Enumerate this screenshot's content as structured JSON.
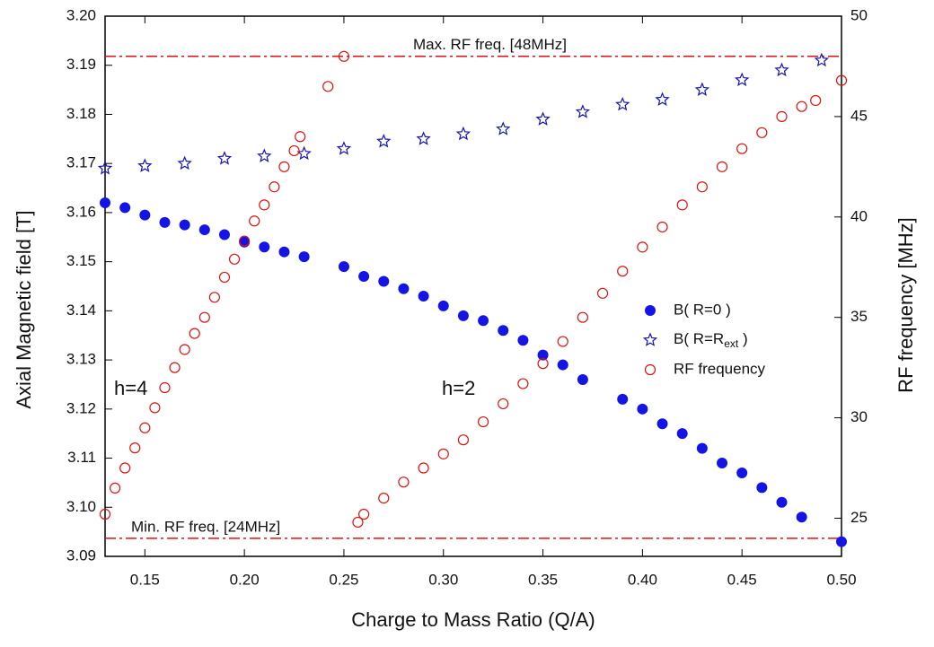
{
  "chart_data": {
    "type": "scatter",
    "x_label": "Charge to Mass Ratio (Q/A)",
    "y_label": "Axial Magnetic field [T]",
    "y2_label": "RF frequency [MHz]",
    "xlim": [
      0.13,
      0.5
    ],
    "ylim": [
      3.09,
      3.2
    ],
    "y2lim": [
      23.1,
      50
    ],
    "xticks": [
      {
        "value": 0.15,
        "label": "0.15"
      },
      {
        "value": 0.2,
        "label": "0.20"
      },
      {
        "value": 0.25,
        "label": "0.25"
      },
      {
        "value": 0.3,
        "label": "0.30"
      },
      {
        "value": 0.35,
        "label": "0.35"
      },
      {
        "value": 0.4,
        "label": "0.40"
      },
      {
        "value": 0.45,
        "label": "0.45"
      },
      {
        "value": 0.5,
        "label": "0.50"
      }
    ],
    "yticks": [
      {
        "value": 3.09,
        "label": "3.09"
      },
      {
        "value": 3.1,
        "label": "3.10"
      },
      {
        "value": 3.11,
        "label": "3.11"
      },
      {
        "value": 3.12,
        "label": "3.12"
      },
      {
        "value": 3.13,
        "label": "3.13"
      },
      {
        "value": 3.14,
        "label": "3.14"
      },
      {
        "value": 3.15,
        "label": "3.15"
      },
      {
        "value": 3.16,
        "label": "3.16"
      },
      {
        "value": 3.17,
        "label": "3.17"
      },
      {
        "value": 3.18,
        "label": "3.18"
      },
      {
        "value": 3.19,
        "label": "3.19"
      },
      {
        "value": 3.2,
        "label": "3.20"
      }
    ],
    "y2ticks": [
      25,
      30,
      35,
      40,
      45,
      50
    ],
    "series": [
      {
        "name": "B( R=0 )",
        "color": "#1414e6",
        "marker": "filled-circle",
        "x": [
          0.13,
          0.14,
          0.15,
          0.16,
          0.17,
          0.18,
          0.19,
          0.2,
          0.21,
          0.22,
          0.23,
          0.25,
          0.26,
          0.27,
          0.28,
          0.29,
          0.3,
          0.31,
          0.32,
          0.33,
          0.34,
          0.35,
          0.36,
          0.37,
          0.39,
          0.4,
          0.41,
          0.42,
          0.43,
          0.44,
          0.45,
          0.46,
          0.47,
          0.48,
          0.5
        ],
        "values": [
          3.162,
          3.161,
          3.1595,
          3.158,
          3.1575,
          3.1565,
          3.1555,
          3.154,
          3.153,
          3.152,
          3.151,
          3.149,
          3.147,
          3.146,
          3.1445,
          3.143,
          3.141,
          3.139,
          3.138,
          3.136,
          3.134,
          3.131,
          3.129,
          3.126,
          3.122,
          3.12,
          3.117,
          3.115,
          3.112,
          3.109,
          3.107,
          3.104,
          3.101,
          3.098,
          3.093
        ]
      },
      {
        "name": "B( R=Rext )",
        "color": "#1414b4",
        "marker": "open-star",
        "x": [
          0.13,
          0.15,
          0.17,
          0.19,
          0.21,
          0.23,
          0.25,
          0.27,
          0.29,
          0.31,
          0.33,
          0.35,
          0.37,
          0.39,
          0.41,
          0.43,
          0.45,
          0.47,
          0.49
        ],
        "values": [
          3.169,
          3.1695,
          3.17,
          3.171,
          3.1715,
          3.172,
          3.173,
          3.1745,
          3.175,
          3.176,
          3.177,
          3.179,
          3.1805,
          3.182,
          3.183,
          3.185,
          3.187,
          3.189,
          3.191
        ]
      },
      {
        "name": "RF frequency",
        "color": "#e01010",
        "marker": "open-circle",
        "axis": "y2",
        "x": [
          0.13,
          0.135,
          0.14,
          0.145,
          0.15,
          0.155,
          0.16,
          0.165,
          0.17,
          0.175,
          0.18,
          0.185,
          0.19,
          0.195,
          0.2,
          0.205,
          0.21,
          0.215,
          0.22,
          0.225,
          0.228,
          0.242,
          0.25,
          0.257,
          0.26,
          0.27,
          0.28,
          0.29,
          0.3,
          0.31,
          0.32,
          0.33,
          0.34,
          0.35,
          0.36,
          0.37,
          0.38,
          0.39,
          0.4,
          0.41,
          0.42,
          0.43,
          0.44,
          0.45,
          0.46,
          0.47,
          0.48,
          0.487,
          0.5
        ],
        "values": [
          25.2,
          26.5,
          27.5,
          28.5,
          29.5,
          30.5,
          31.5,
          32.5,
          33.4,
          34.2,
          35,
          36,
          37,
          37.9,
          38.8,
          39.8,
          40.6,
          41.5,
          42.5,
          43.3,
          44,
          46.5,
          48,
          24.8,
          25.2,
          26,
          26.8,
          27.5,
          28.2,
          28.9,
          29.8,
          30.7,
          31.7,
          32.7,
          33.8,
          35,
          36.2,
          37.3,
          38.5,
          39.5,
          40.6,
          41.5,
          42.5,
          43.4,
          44.2,
          45,
          45.5,
          45.8,
          46.8
        ]
      }
    ],
    "reference_lines": [
      {
        "value": 48,
        "axis": "y2",
        "label": "Max. RF freq. [48MHz]",
        "color": "#e01010"
      },
      {
        "value": 24,
        "axis": "y2",
        "label": "Min. RF freq. [24MHz]",
        "color": "#e01010"
      }
    ],
    "annotations": [
      "h=4",
      "h=2"
    ]
  }
}
